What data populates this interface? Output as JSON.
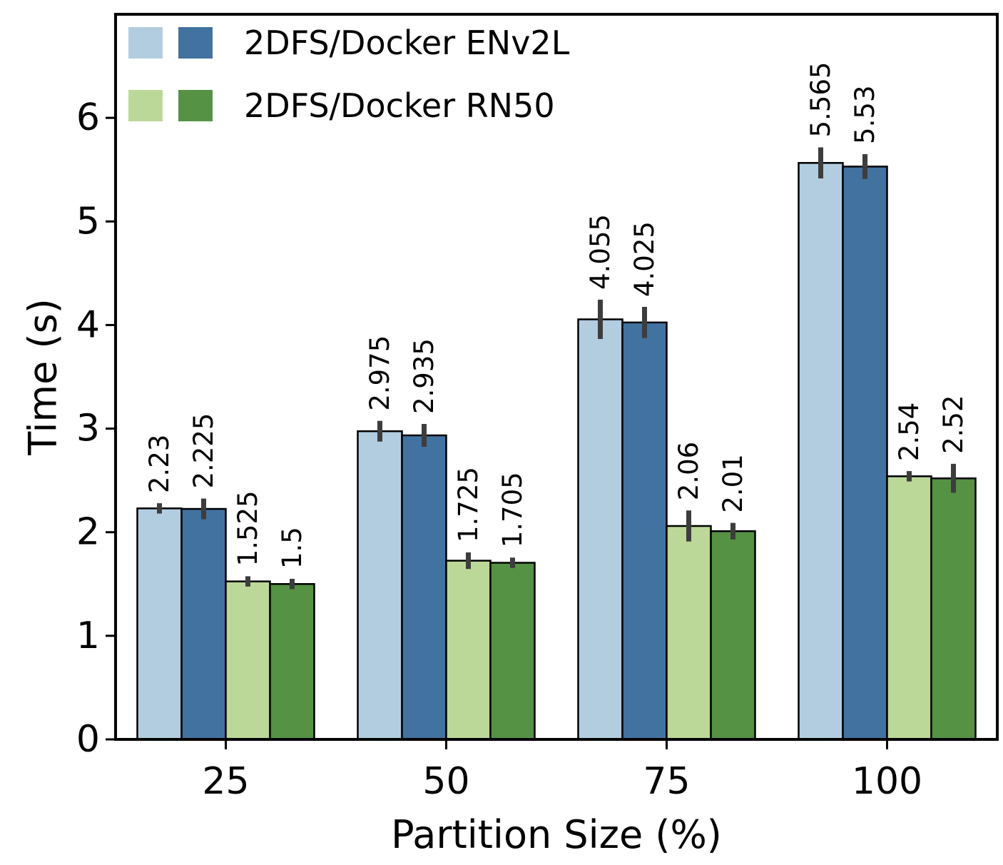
{
  "chart_data": {
    "type": "bar",
    "title": "",
    "xlabel": "Partition Size (%)",
    "ylabel": "Time (s)",
    "categories": [
      "25",
      "50",
      "75",
      "100"
    ],
    "ylim": [
      0,
      7
    ],
    "yticks": [
      0,
      1,
      2,
      3,
      4,
      5,
      6
    ],
    "grid": false,
    "legend_position": "top-left",
    "legend": [
      {
        "label": "2DFS/Docker ENv2L",
        "colors": [
          "#b3cde0",
          "#4272a0"
        ]
      },
      {
        "label": "2DFS/Docker RN50",
        "colors": [
          "#bcd898",
          "#559244"
        ]
      }
    ],
    "series": [
      {
        "values": [
          2.23,
          2.975,
          4.055,
          5.565
        ],
        "labels": [
          "2.23",
          "2.975",
          "4.055",
          "5.565"
        ],
        "error": [
          0.05,
          0.1,
          0.19,
          0.15
        ],
        "color": "#b3cde0"
      },
      {
        "values": [
          2.225,
          2.935,
          4.025,
          5.53
        ],
        "labels": [
          "2.225",
          "2.935",
          "4.025",
          "5.53"
        ],
        "error": [
          0.1,
          0.11,
          0.15,
          0.12
        ],
        "color": "#4272a0"
      },
      {
        "values": [
          1.525,
          1.725,
          2.06,
          2.54
        ],
        "labels": [
          "1.525",
          "1.725",
          "2.06",
          "2.54"
        ],
        "error": [
          0.05,
          0.08,
          0.15,
          0.05
        ],
        "color": "#bcd898"
      },
      {
        "values": [
          1.5,
          1.705,
          2.01,
          2.52
        ],
        "labels": [
          "1.5",
          "1.705",
          "2.01",
          "2.52"
        ],
        "error": [
          0.05,
          0.05,
          0.08,
          0.14
        ],
        "color": "#559244"
      }
    ]
  }
}
